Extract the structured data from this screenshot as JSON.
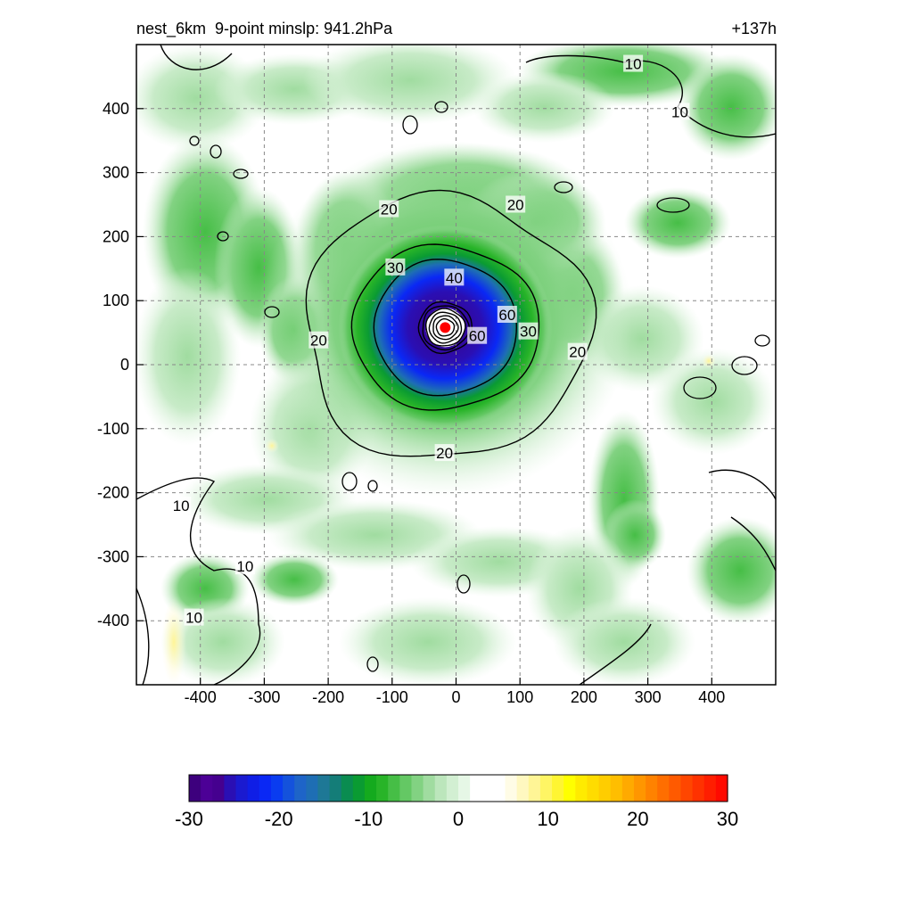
{
  "header": {
    "left_title": "nest_6km  9-point minslp: 941.2hPa",
    "right_title": "+137h"
  },
  "chart_data": {
    "type": "heatmap",
    "title": "nest_6km  9-point minslp: 941.2hPa",
    "time_label": "+137h",
    "xlim": [
      -500,
      500
    ],
    "ylim": [
      -500,
      500
    ],
    "x_ticks": [
      -400,
      -300,
      -200,
      -100,
      0,
      100,
      200,
      300,
      400
    ],
    "y_ticks": [
      400,
      300,
      200,
      100,
      0,
      -100,
      -200,
      -300,
      -400
    ],
    "grid": true,
    "storm_center": [
      -17,
      58
    ],
    "contour_levels": [
      10,
      20,
      30,
      40,
      50,
      60
    ],
    "contour_labels": [
      {
        "text": "10",
        "x": 277,
        "y": 470
      },
      {
        "text": "10",
        "x": 350,
        "y": 395
      },
      {
        "text": "10",
        "x": -430,
        "y": -220
      },
      {
        "text": "10",
        "x": -330,
        "y": -315
      },
      {
        "text": "10",
        "x": -410,
        "y": -395
      },
      {
        "text": "20",
        "x": -105,
        "y": 243
      },
      {
        "text": "20",
        "x": 93,
        "y": 250
      },
      {
        "text": "20",
        "x": -215,
        "y": 38
      },
      {
        "text": "20",
        "x": 190,
        "y": 20
      },
      {
        "text": "20",
        "x": -18,
        "y": -138
      },
      {
        "text": "30",
        "x": -95,
        "y": 152
      },
      {
        "text": "30",
        "x": 113,
        "y": 52
      },
      {
        "text": "40",
        "x": -3,
        "y": 136
      },
      {
        "text": "60",
        "x": 33,
        "y": 45
      },
      {
        "text": "60",
        "x": 80,
        "y": 78
      }
    ],
    "colorbar": {
      "min": -30,
      "max": 30,
      "tick_labels": [
        "-30",
        "-20",
        "-10",
        "0",
        "10",
        "20",
        "30"
      ],
      "colors": [
        "#3d007d",
        "#4c0096",
        "#45008f",
        "#2a0fb4",
        "#1a1ad0",
        "#0f1ee6",
        "#0a28f5",
        "#0a3cf0",
        "#1452dc",
        "#1e64c8",
        "#1e6eb4",
        "#1e7896",
        "#147d78",
        "#0a8c50",
        "#0a9b32",
        "#14aa1e",
        "#28b428",
        "#46be46",
        "#64c864",
        "#82d282",
        "#a0dca0",
        "#bce6bc",
        "#d2efd2",
        "#e6f7e6",
        "#ffffff",
        "#ffffff",
        "#ffffff",
        "#fffce6",
        "#fff8c0",
        "#fff596",
        "#fff564",
        "#fff532",
        "#ffff00",
        "#ffeb00",
        "#ffdc00",
        "#ffcd00",
        "#ffbe00",
        "#ffaa00",
        "#ff9600",
        "#ff8200",
        "#ff6e00",
        "#ff5a00",
        "#ff4600",
        "#ff3200",
        "#ff1e00",
        "#ff0a00"
      ]
    }
  }
}
